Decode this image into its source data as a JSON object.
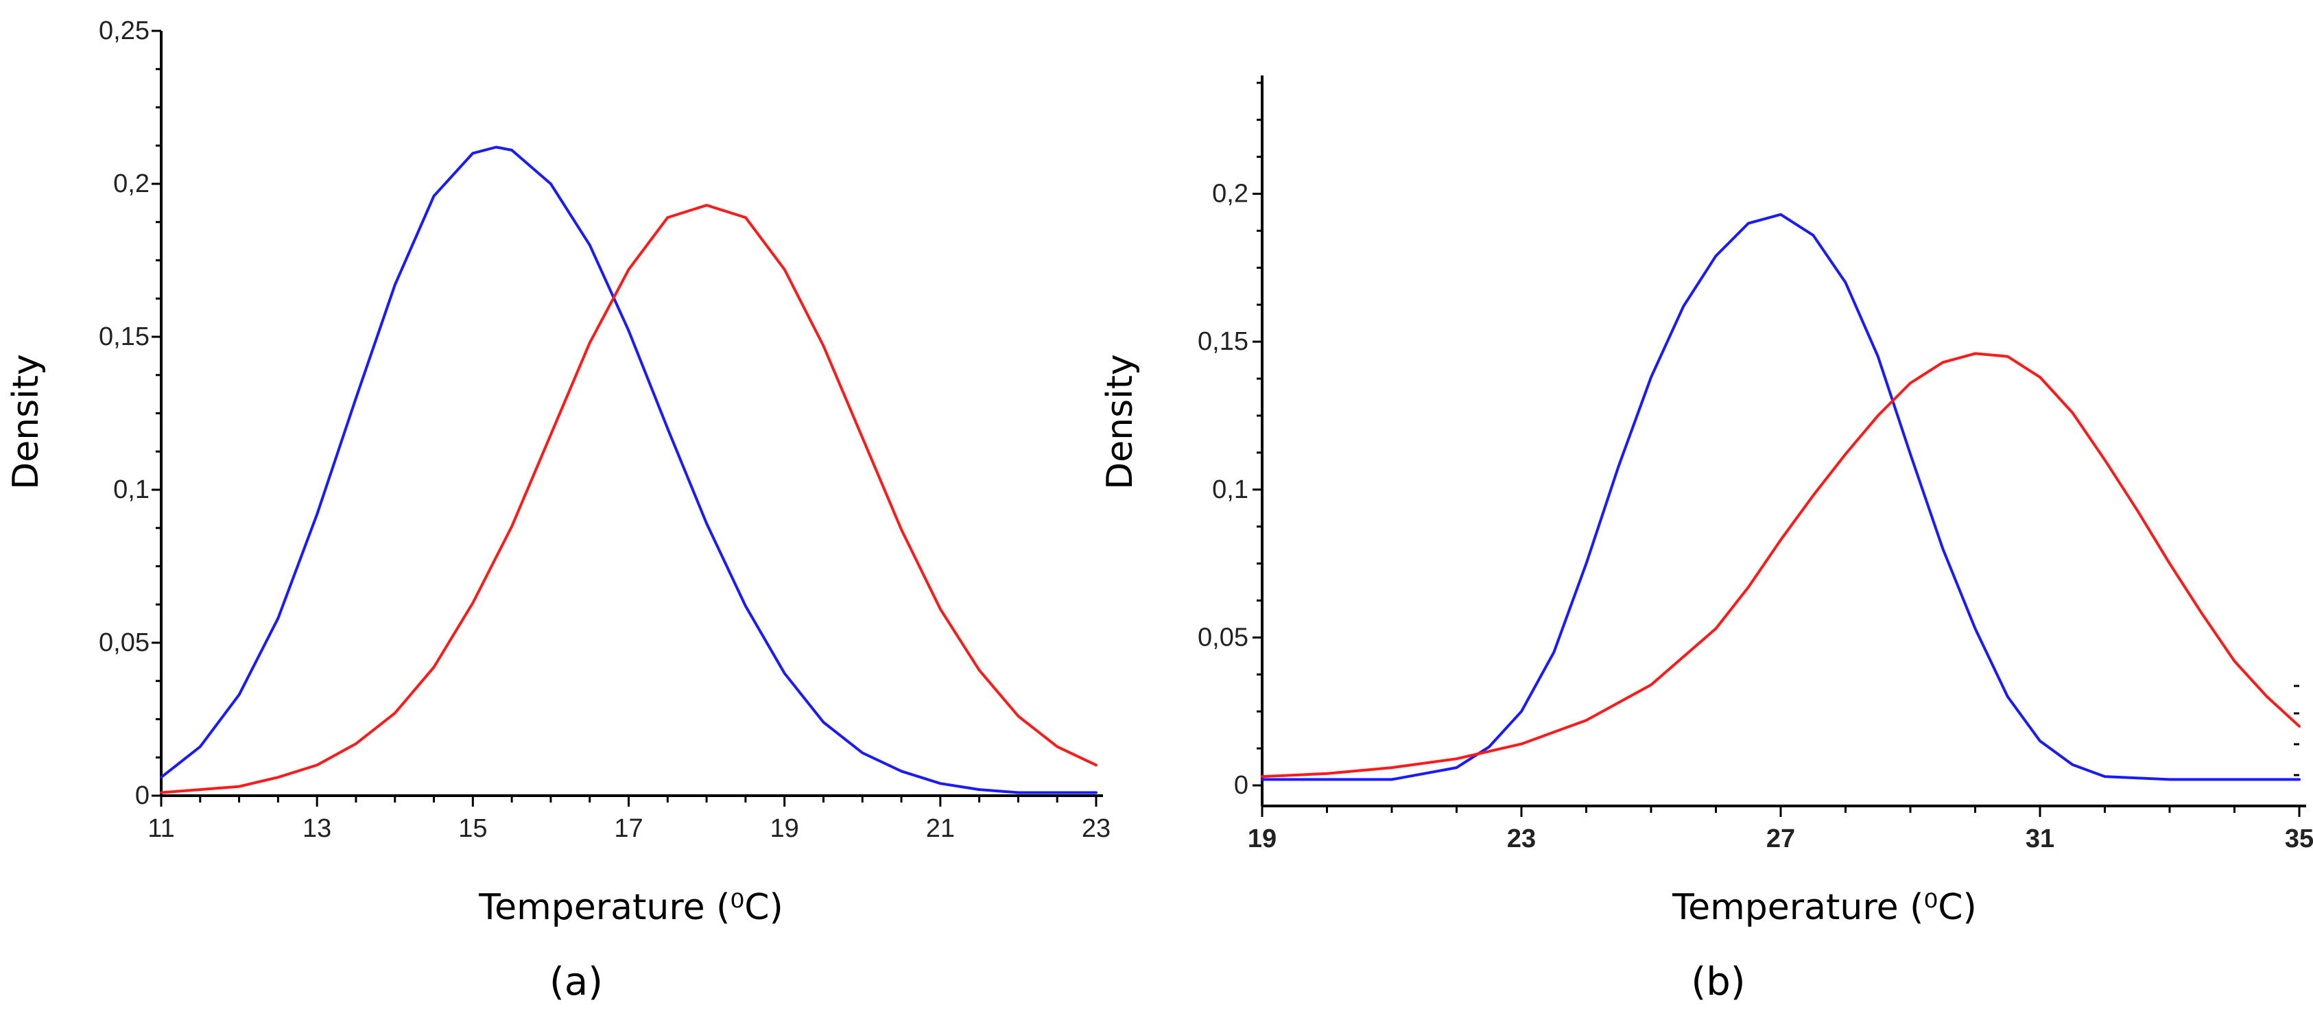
{
  "chart_data": [
    {
      "type": "line",
      "panel_label": "(a)",
      "xlabel": "Temperature (⁰C)",
      "ylabel": "Density",
      "xlim": [
        11,
        23
      ],
      "ylim": [
        0,
        0.25
      ],
      "x_ticks": [
        11,
        13,
        15,
        17,
        19,
        21,
        23
      ],
      "x_tick_labels": [
        "11",
        "13",
        "15",
        "17",
        "19",
        "21",
        "23"
      ],
      "y_ticks": [
        0,
        0.05,
        0.1,
        0.15,
        0.2,
        0.25
      ],
      "y_tick_labels": [
        "0",
        "0,05",
        "0,1",
        "0,15",
        "0,2",
        "0,25"
      ],
      "series": [
        {
          "name": "blue",
          "color": "#1a1aff",
          "x": [
            11,
            11.5,
            12,
            12.5,
            13,
            13.5,
            14,
            14.5,
            15,
            15.3,
            15.5,
            16,
            16.5,
            17,
            17.5,
            18,
            18.5,
            19,
            19.5,
            20,
            20.5,
            21,
            21.5,
            22,
            22.5,
            23
          ],
          "y": [
            0.006,
            0.016,
            0.033,
            0.058,
            0.092,
            0.13,
            0.167,
            0.196,
            0.21,
            0.212,
            0.211,
            0.2,
            0.18,
            0.152,
            0.12,
            0.089,
            0.062,
            0.04,
            0.024,
            0.014,
            0.008,
            0.004,
            0.002,
            0.001,
            0.001,
            0.001
          ]
        },
        {
          "name": "red",
          "color": "#ff1a1a",
          "x": [
            11,
            11.5,
            12,
            12.5,
            13,
            13.5,
            14,
            14.5,
            15,
            15.5,
            16,
            16.5,
            17,
            17.5,
            18,
            18.5,
            19,
            19.5,
            20,
            20.5,
            21,
            21.5,
            22,
            22.5,
            23
          ],
          "y": [
            0.001,
            0.002,
            0.003,
            0.006,
            0.01,
            0.017,
            0.027,
            0.042,
            0.063,
            0.088,
            0.118,
            0.148,
            0.172,
            0.189,
            0.193,
            0.189,
            0.172,
            0.147,
            0.117,
            0.087,
            0.061,
            0.041,
            0.026,
            0.016,
            0.01
          ]
        }
      ]
    },
    {
      "type": "line",
      "panel_label": "(b)",
      "xlabel": "Temperature (⁰C)",
      "ylabel": "Density",
      "xlim": [
        19,
        35
      ],
      "ylim": [
        0,
        0.24
      ],
      "x_ticks": [
        19,
        23,
        27,
        31,
        35
      ],
      "x_tick_labels": [
        "19",
        "23",
        "27",
        "31",
        "35"
      ],
      "y_ticks": [
        0,
        0.05,
        0.1,
        0.15,
        0.2
      ],
      "y_tick_labels": [
        "0",
        "0,05",
        "0,1",
        "0,15",
        "0,2"
      ],
      "series": [
        {
          "name": "blue",
          "color": "#1a1aff",
          "x": [
            19,
            20,
            21,
            22,
            22.5,
            23,
            23.5,
            24,
            24.5,
            25,
            25.5,
            26,
            26.5,
            27,
            27.5,
            28,
            28.5,
            29,
            29.5,
            30,
            30.5,
            31,
            31.5,
            32,
            33,
            34,
            35
          ],
          "y": [
            0.002,
            0.002,
            0.002,
            0.006,
            0.013,
            0.025,
            0.045,
            0.075,
            0.108,
            0.138,
            0.162,
            0.179,
            0.19,
            0.193,
            0.186,
            0.17,
            0.145,
            0.112,
            0.08,
            0.053,
            0.03,
            0.015,
            0.007,
            0.003,
            0.002,
            0.002,
            0.002
          ]
        },
        {
          "name": "red",
          "color": "#ff1a1a",
          "x": [
            19,
            20,
            21,
            22,
            23,
            24,
            25,
            26,
            26.5,
            27,
            27.5,
            28,
            28.5,
            29,
            29.5,
            30,
            30.5,
            31,
            31.5,
            32,
            32.5,
            33,
            33.5,
            34,
            34.5,
            35
          ],
          "y": [
            0.003,
            0.004,
            0.006,
            0.009,
            0.014,
            0.022,
            0.034,
            0.053,
            0.067,
            0.083,
            0.098,
            0.112,
            0.125,
            0.136,
            0.143,
            0.146,
            0.145,
            0.138,
            0.126,
            0.11,
            0.093,
            0.075,
            0.058,
            0.042,
            0.03,
            0.02
          ]
        }
      ]
    }
  ]
}
